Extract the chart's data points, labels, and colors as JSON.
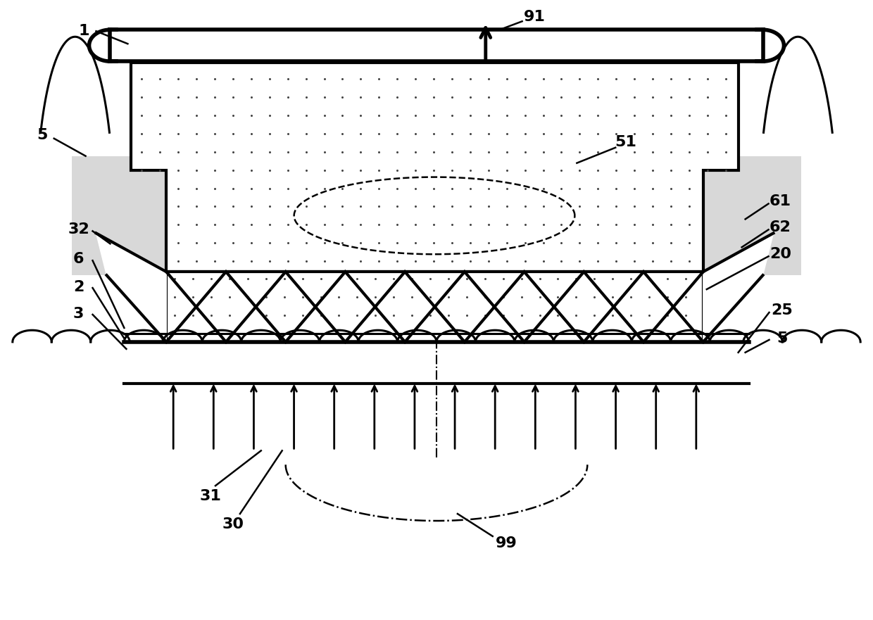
{
  "bg_color": "#ffffff",
  "line_color": "#000000",
  "figure_size": [
    12.4,
    8.81
  ],
  "dpi": 100,
  "dot_color": "#444444",
  "gray_fill": "#c8c8c8",
  "label_fontsize": 16,
  "label_fontweight": "bold"
}
